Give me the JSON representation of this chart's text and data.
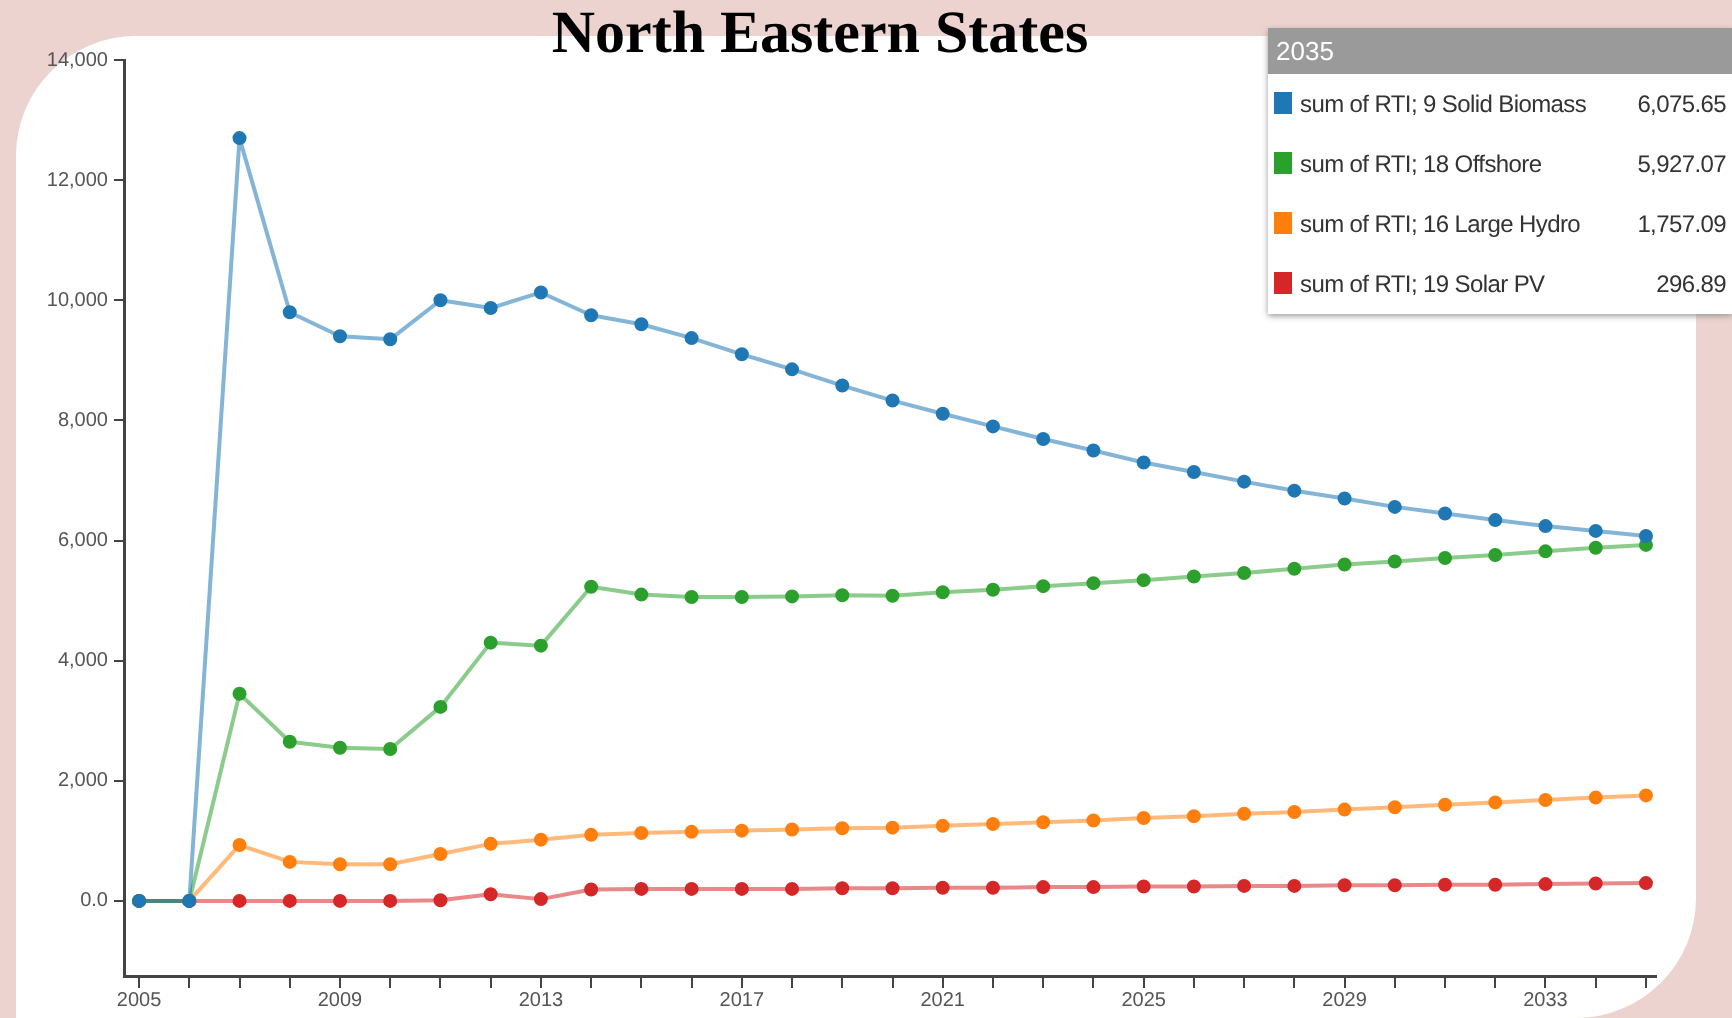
{
  "chart_data": {
    "type": "line",
    "title": "North Eastern States",
    "legend_title": "2035",
    "x": [
      2005,
      2006,
      2007,
      2008,
      2009,
      2010,
      2011,
      2012,
      2013,
      2014,
      2015,
      2016,
      2017,
      2018,
      2019,
      2020,
      2021,
      2022,
      2023,
      2024,
      2025,
      2026,
      2027,
      2028,
      2029,
      2030,
      2031,
      2032,
      2033,
      2034,
      2035
    ],
    "series": [
      {
        "name": "sum of RTI; 9 Solid Biomass",
        "color": "#1f77b4",
        "values": [
          0,
          0,
          12700,
          9800,
          9400,
          9350,
          10000,
          9870,
          10130,
          9750,
          9600,
          9370,
          9100,
          8850,
          8580,
          8330,
          8110,
          7900,
          7690,
          7500,
          7300,
          7140,
          6980,
          6830,
          6700,
          6560,
          6450,
          6340,
          6240,
          6160,
          6075.65
        ]
      },
      {
        "name": "sum of RTI; 18 Offshore",
        "color": "#2ca02c",
        "values": [
          0,
          0,
          3450,
          2650,
          2550,
          2530,
          3230,
          4300,
          4250,
          5230,
          5100,
          5060,
          5060,
          5070,
          5090,
          5080,
          5140,
          5180,
          5240,
          5290,
          5340,
          5400,
          5460,
          5530,
          5600,
          5650,
          5710,
          5760,
          5820,
          5880,
          5927.07
        ]
      },
      {
        "name": "sum of RTI; 16 Large Hydro",
        "color": "#ff7f0e",
        "values": [
          0,
          0,
          930,
          650,
          610,
          610,
          780,
          950,
          1020,
          1100,
          1130,
          1150,
          1170,
          1190,
          1210,
          1220,
          1250,
          1280,
          1310,
          1340,
          1380,
          1410,
          1450,
          1480,
          1520,
          1560,
          1600,
          1640,
          1680,
          1720,
          1757.09
        ]
      },
      {
        "name": "sum of RTI; 19 Solar PV",
        "color": "#d62728",
        "values": [
          0,
          0,
          0,
          0,
          0,
          0,
          10,
          110,
          30,
          190,
          200,
          200,
          200,
          200,
          210,
          210,
          220,
          220,
          230,
          230,
          240,
          240,
          250,
          250,
          260,
          260,
          270,
          270,
          280,
          290,
          296.89
        ]
      }
    ],
    "annotations": [
      "6,075.65",
      "5,927.07",
      "1,757.09",
      "296.89"
    ],
    "xlim": [
      2004.7,
      2035.2
    ],
    "xticks": [
      2005,
      {
        "value": 2006,
        "label": null
      },
      {
        "value": 2007,
        "label": null
      },
      {
        "value": 2008,
        "label": null
      },
      2009,
      {
        "value": 2010,
        "label": null
      },
      {
        "value": 2011,
        "label": null
      },
      {
        "value": 2012,
        "label": null
      },
      2013,
      {
        "value": 2014,
        "label": null
      },
      {
        "value": 2015,
        "label": null
      },
      {
        "value": 2016,
        "label": null
      },
      2017,
      {
        "value": 2018,
        "label": null
      },
      {
        "value": 2019,
        "label": null
      },
      {
        "value": 2020,
        "label": null
      },
      2021,
      {
        "value": 2022,
        "label": null
      },
      {
        "value": 2023,
        "label": null
      },
      {
        "value": 2024,
        "label": null
      },
      2025,
      {
        "value": 2026,
        "label": null
      },
      {
        "value": 2027,
        "label": null
      },
      {
        "value": 2028,
        "label": null
      },
      2029,
      {
        "value": 2030,
        "label": null
      },
      {
        "value": 2031,
        "label": null
      },
      {
        "value": 2032,
        "label": null
      },
      2033,
      {
        "value": 2034,
        "label": null
      },
      {
        "value": 2035,
        "label": null
      }
    ],
    "ylim": [
      -1250,
      14000
    ],
    "yticks": [
      {
        "value": 0,
        "label": "0.0"
      },
      {
        "value": 2000,
        "label": "2,000"
      },
      {
        "value": 4000,
        "label": "4,000"
      },
      {
        "value": 6000,
        "label": "6,000"
      },
      {
        "value": 8000,
        "label": "8,000"
      },
      {
        "value": 10000,
        "label": "10,000"
      },
      {
        "value": 12000,
        "label": "12,000"
      },
      {
        "value": 14000,
        "label": "14,000"
      }
    ],
    "grid": false,
    "legend": "top right",
    "marker": "circle",
    "line_style": "solid"
  }
}
